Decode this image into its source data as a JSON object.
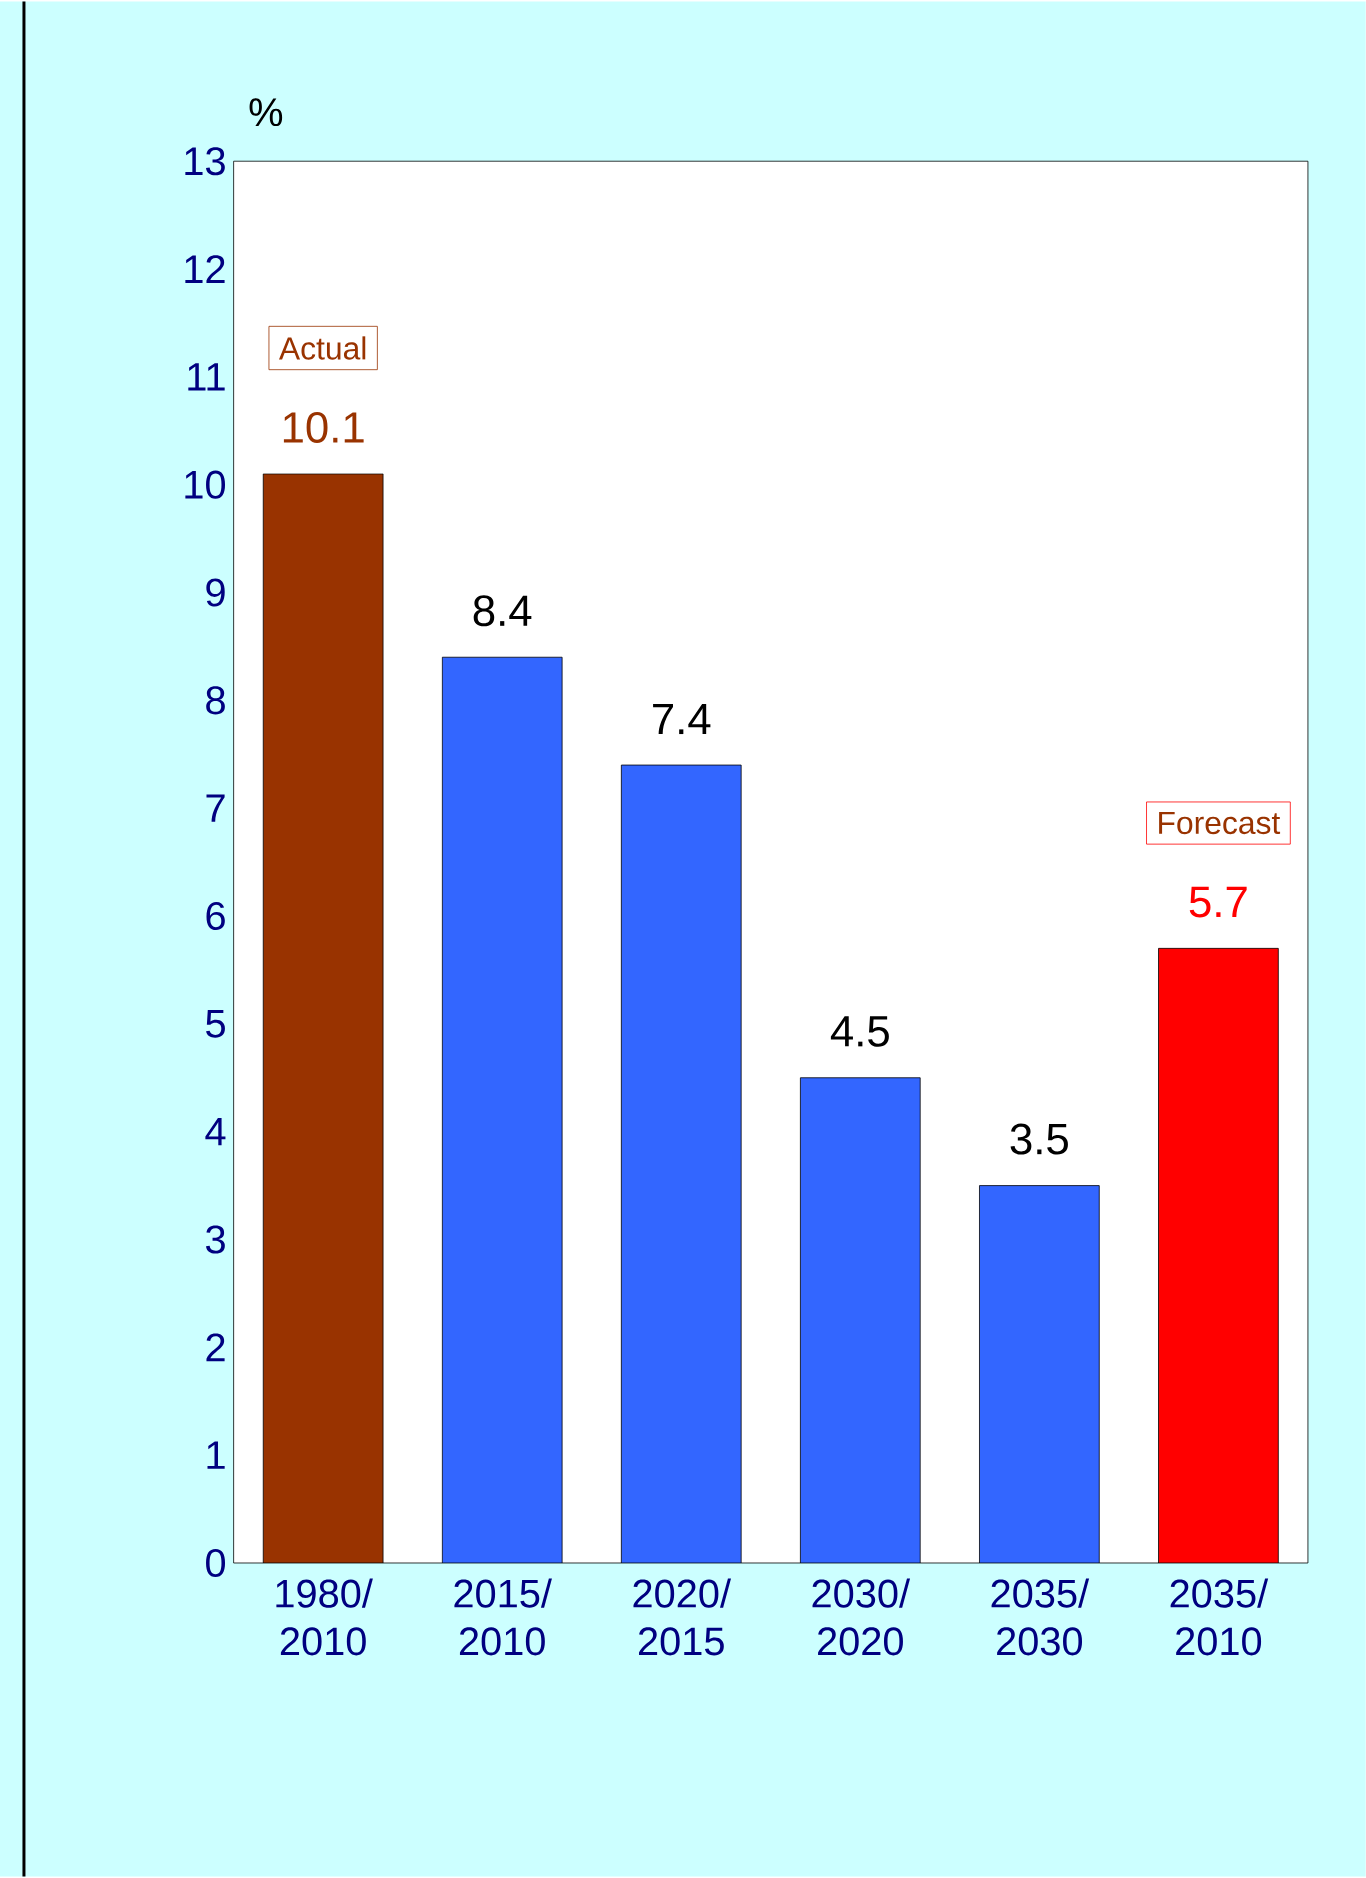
{
  "chart_data": {
    "type": "bar",
    "ylabel": "%",
    "categories": [
      "1980/ 2010",
      "2015/ 2010",
      "2020/ 2015",
      "2030/ 2020",
      "2035/ 2030",
      "2035/ 2010"
    ],
    "values": [
      10.1,
      8.4,
      7.4,
      4.5,
      3.5,
      5.7
    ],
    "colors": [
      "#993300",
      "#3366ff",
      "#3366ff",
      "#3366ff",
      "#3366ff",
      "#ff0000"
    ],
    "ylim": [
      0,
      13
    ],
    "yticks": [
      0,
      1,
      2,
      3,
      4,
      5,
      6,
      7,
      8,
      9,
      10,
      11,
      12,
      13
    ],
    "data_labels": true,
    "annotations": [
      "Actual",
      "Forecast"
    ]
  }
}
